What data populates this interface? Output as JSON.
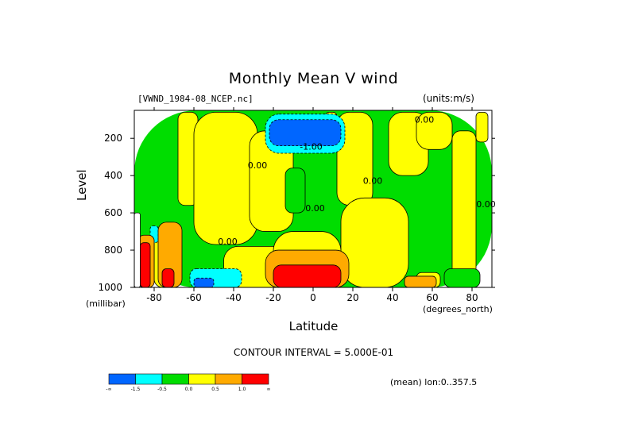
{
  "chart_data": {
    "type": "heatmap",
    "title": "Monthly Mean V wind",
    "dataset": "[VWND_1984-08_NCEP.nc]",
    "units": "(units:m/s)",
    "xlabel": "Latitude",
    "xunit": "(degrees_north)",
    "ylabel": "Level",
    "yunit": "(millibar)",
    "xlim": [
      -90,
      90
    ],
    "ylim": [
      1000,
      50
    ],
    "x_ticks": [
      -80,
      -60,
      -40,
      -20,
      0,
      20,
      40,
      60,
      80
    ],
    "x_tick_labels": [
      "-80",
      "-60",
      "-40",
      "-20",
      "0",
      "20",
      "40",
      "60",
      "80"
    ],
    "y_ticks": [
      200,
      400,
      600,
      800,
      1000
    ],
    "y_tick_labels": [
      "200",
      "400",
      "600",
      "800",
      "1000"
    ],
    "contour_interval": "CONTOUR INTERVAL = 5.000E-01",
    "mean_info": "(mean) lon:0..357.5",
    "contour_labels": [
      {
        "text": "-1.00",
        "x": -1,
        "y": 260
      },
      {
        "text": "0.00",
        "x": 56,
        "y": 115
      },
      {
        "text": "0.00",
        "x": -28,
        "y": 360
      },
      {
        "text": "0.00",
        "x": 1,
        "y": 590
      },
      {
        "text": "0.00",
        "x": -43,
        "y": 770
      },
      {
        "text": "0.00",
        "x": 30,
        "y": 445
      },
      {
        "text": "0.00",
        "x": 87,
        "y": 570
      }
    ],
    "colorbar": {
      "boundaries": [
        "-∞",
        "-1.5",
        "-0.5",
        "0.0",
        "0.5",
        "1.0",
        "∞"
      ],
      "colors": [
        "#0066ff",
        "#00ffff",
        "#00dd00",
        "#ffff00",
        "#ffaa00",
        "#ff0000"
      ]
    },
    "regions": [
      {
        "color": "#00dd00",
        "x": -90,
        "x2": 90,
        "y": 50,
        "y2": 1000
      },
      {
        "color": "#ffff00",
        "x": -68,
        "x2": -58,
        "y": 60,
        "y2": 560
      },
      {
        "color": "#ffff00",
        "x": -60,
        "x2": -28,
        "y": 60,
        "y2": 770
      },
      {
        "color": "#ffff00",
        "x": -32,
        "x2": -10,
        "y": 160,
        "y2": 700
      },
      {
        "color": "#ffff00",
        "x": 6,
        "x2": 12,
        "y": 60,
        "y2": 200
      },
      {
        "color": "#ffff00",
        "x": 12,
        "x2": 30,
        "y": 60,
        "y2": 560
      },
      {
        "color": "#ffff00",
        "x": 14,
        "x2": 48,
        "y": 520,
        "y2": 1000
      },
      {
        "color": "#ffff00",
        "x": 38,
        "x2": 58,
        "y": 60,
        "y2": 400
      },
      {
        "color": "#ffff00",
        "x": 52,
        "x2": 70,
        "y": 60,
        "y2": 260
      },
      {
        "color": "#ffff00",
        "x": 70,
        "x2": 82,
        "y": 160,
        "y2": 1000
      },
      {
        "color": "#ffff00",
        "x": 82,
        "x2": 88,
        "y": 60,
        "y2": 220
      },
      {
        "color": "#ffff00",
        "x": -45,
        "x2": -10,
        "y": 780,
        "y2": 1000
      },
      {
        "color": "#ffff00",
        "x": -20,
        "x2": 14,
        "y": 700,
        "y2": 1000
      },
      {
        "color": "#ffff00",
        "x": -80,
        "x2": -68,
        "y": 690,
        "y2": 1000
      },
      {
        "color": "#ffff00",
        "x": 52,
        "x2": 64,
        "y": 920,
        "y2": 1000
      },
      {
        "color": "#00dd00",
        "x": 66,
        "x2": 84,
        "y": 900,
        "y2": 1000
      },
      {
        "color": "#00dd00",
        "x": -14,
        "x2": -4,
        "y": 360,
        "y2": 600
      },
      {
        "color": "#00ffff",
        "x": -62,
        "x2": -36,
        "y": 900,
        "y2": 1000
      },
      {
        "color": "#0066ff",
        "x": -60,
        "x2": -50,
        "y": 950,
        "y2": 1000
      },
      {
        "color": "#00ffff",
        "x": -82,
        "x2": -78,
        "y": 670,
        "y2": 760
      },
      {
        "color": "#00ffff",
        "x": -24,
        "x2": 16,
        "y": 70,
        "y2": 280
      },
      {
        "color": "#0066ff",
        "x": -22,
        "x2": 14,
        "y": 100,
        "y2": 240
      },
      {
        "color": "#ffaa00",
        "x": -78,
        "x2": -66,
        "y": 650,
        "y2": 1000
      },
      {
        "color": "#ff0000",
        "x": -76,
        "x2": -70,
        "y": 900,
        "y2": 1000
      },
      {
        "color": "#ffaa00",
        "x": -88,
        "x2": -80,
        "y": 720,
        "y2": 1000
      },
      {
        "color": "#ff0000",
        "x": -87,
        "x2": -82,
        "y": 760,
        "y2": 1000
      },
      {
        "color": "#ffaa00",
        "x": -24,
        "x2": 18,
        "y": 800,
        "y2": 1000
      },
      {
        "color": "#ff0000",
        "x": -20,
        "x2": 14,
        "y": 880,
        "y2": 1000
      },
      {
        "color": "#ffaa00",
        "x": 46,
        "x2": 62,
        "y": 940,
        "y2": 1000
      },
      {
        "color": "#ffffff",
        "x": -90,
        "x2": -87,
        "y": 600,
        "y2": 1000
      }
    ]
  }
}
